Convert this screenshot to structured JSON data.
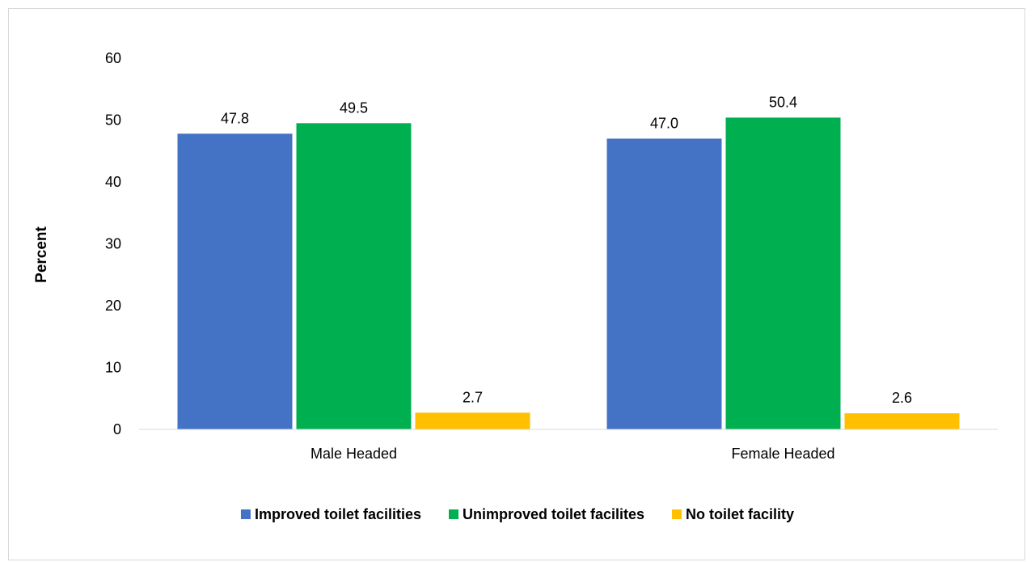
{
  "chart_data": {
    "type": "bar",
    "title": "",
    "xlabel": "",
    "ylabel": "Percent",
    "ylim": [
      0,
      60
    ],
    "yticks": [
      0,
      10,
      20,
      30,
      40,
      50,
      60
    ],
    "grid": false,
    "legend_position": "bottom",
    "categories": [
      "Male Headed",
      "Female Headed"
    ],
    "series": [
      {
        "name": "Improved toilet facilities",
        "color": "#4472C4",
        "values": [
          47.8,
          47.0
        ],
        "labels": [
          "47.8",
          "47.0"
        ]
      },
      {
        "name": "Unimproved toilet facilites",
        "color": "#00B050",
        "values": [
          49.5,
          50.4
        ],
        "labels": [
          "49.5",
          "50.4"
        ]
      },
      {
        "name": "No toilet facility",
        "color": "#FFC000",
        "values": [
          2.7,
          2.6
        ],
        "labels": [
          "2.7",
          "2.6"
        ]
      }
    ]
  }
}
